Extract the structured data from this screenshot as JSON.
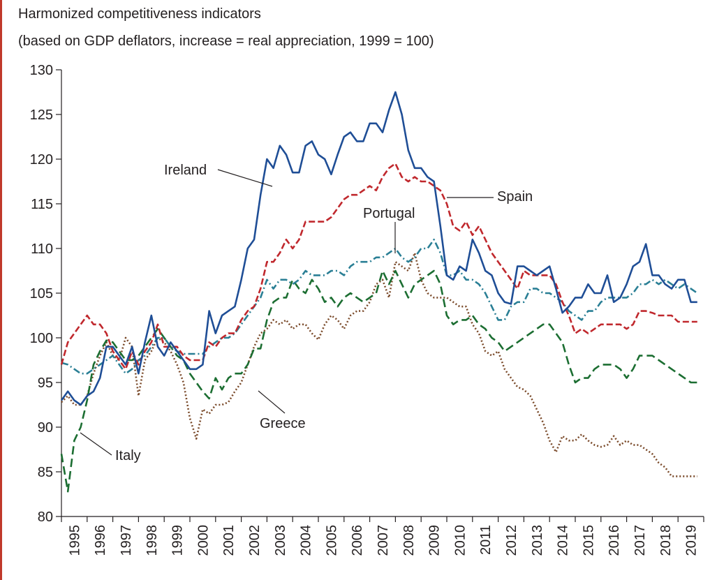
{
  "header": {
    "title": "Harmonized competitiveness indicators",
    "subtitle": "(based on GDP deflators, increase = real appreciation, 1999 = 100)"
  },
  "chart_data": {
    "type": "line",
    "title": "Harmonized competitiveness indicators",
    "subtitle": "(based on GDP deflators, increase = real appreciation, 1999 = 100)",
    "xlabel": "",
    "ylabel": "",
    "ylim": [
      80,
      130
    ],
    "yticks": [
      80,
      85,
      90,
      95,
      100,
      105,
      110,
      115,
      120,
      125,
      130
    ],
    "xlim": [
      1995.0,
      2020.0
    ],
    "xticks": [
      "1995",
      "1996",
      "1997",
      "1998",
      "1999",
      "2000",
      "2001",
      "2002",
      "2003",
      "2004",
      "2005",
      "2006",
      "2007",
      "2008",
      "2009",
      "2010",
      "2011",
      "2012",
      "2013",
      "2014",
      "2015",
      "2016",
      "2017",
      "2018",
      "2019"
    ],
    "grid": false,
    "legend": "inline labels",
    "series": [
      {
        "name": "Ireland",
        "color": "#1f4e96",
        "style": "solid",
        "x": [
          1995.0,
          1995.25,
          1995.5,
          1995.75,
          1996.0,
          1996.25,
          1996.5,
          1996.75,
          1997.0,
          1997.25,
          1997.5,
          1997.75,
          1998.0,
          1998.25,
          1998.5,
          1998.75,
          1999.0,
          1999.25,
          1999.5,
          1999.75,
          2000.0,
          2000.25,
          2000.5,
          2000.75,
          2001.0,
          2001.25,
          2001.5,
          2001.75,
          2002.0,
          2002.25,
          2002.5,
          2002.75,
          2003.0,
          2003.25,
          2003.5,
          2003.75,
          2004.0,
          2004.25,
          2004.5,
          2004.75,
          2005.0,
          2005.25,
          2005.5,
          2005.75,
          2006.0,
          2006.25,
          2006.5,
          2006.75,
          2007.0,
          2007.25,
          2007.5,
          2007.75,
          2008.0,
          2008.25,
          2008.5,
          2008.75,
          2009.0,
          2009.25,
          2009.5,
          2009.75,
          2010.0,
          2010.25,
          2010.5,
          2010.75,
          2011.0,
          2011.25,
          2011.5,
          2011.75,
          2012.0,
          2012.25,
          2012.5,
          2012.75,
          2013.0,
          2013.25,
          2013.5,
          2013.75,
          2014.0,
          2014.25,
          2014.5,
          2014.75,
          2015.0,
          2015.25,
          2015.5,
          2015.75,
          2016.0,
          2016.25,
          2016.5,
          2016.75,
          2017.0,
          2017.25,
          2017.5,
          2017.75,
          2018.0,
          2018.25,
          2018.5,
          2018.75,
          2019.0,
          2019.25,
          2019.5,
          2019.75
        ],
        "y": [
          93.0,
          94.0,
          93.0,
          92.5,
          93.5,
          94.0,
          95.5,
          99.0,
          99.0,
          98.0,
          97.0,
          99.0,
          96.0,
          99.5,
          102.5,
          99.0,
          98.0,
          99.5,
          98.5,
          97.5,
          96.5,
          96.5,
          97.0,
          103.0,
          100.5,
          102.5,
          103.0,
          103.5,
          106.5,
          110.0,
          111.0,
          116.0,
          120.0,
          119.0,
          121.5,
          120.5,
          118.5,
          118.5,
          121.5,
          122.0,
          120.5,
          120.0,
          118.3,
          120.5,
          122.5,
          123.0,
          122.0,
          122.0,
          124.0,
          124.0,
          123.0,
          125.5,
          127.5,
          125.0,
          121.0,
          119.0,
          119.0,
          118.0,
          117.5,
          112.5,
          107.0,
          106.5,
          108.0,
          107.5,
          111.0,
          109.5,
          107.5,
          107.0,
          105.0,
          104.0,
          103.8,
          108.0,
          108.0,
          107.5,
          107.0,
          107.5,
          108.0,
          105.5,
          102.8,
          103.5,
          104.5,
          104.5,
          106.0,
          105.0,
          105.0,
          107.0,
          104.0,
          104.5,
          106.0,
          108.0,
          108.5,
          110.5,
          107.0,
          107.0,
          106.0,
          105.5,
          106.5,
          106.5,
          104.0,
          104.0
        ]
      },
      {
        "name": "Spain",
        "color": "#c0282d",
        "style": "dashed",
        "x": [
          1995.0,
          1995.25,
          1995.5,
          1995.75,
          1996.0,
          1996.25,
          1996.5,
          1996.75,
          1997.0,
          1997.25,
          1997.5,
          1997.75,
          1998.0,
          1998.25,
          1998.5,
          1998.75,
          1999.0,
          1999.25,
          1999.5,
          1999.75,
          2000.0,
          2000.25,
          2000.5,
          2000.75,
          2001.0,
          2001.25,
          2001.5,
          2001.75,
          2002.0,
          2002.25,
          2002.5,
          2002.75,
          2003.0,
          2003.25,
          2003.5,
          2003.75,
          2004.0,
          2004.25,
          2004.5,
          2004.75,
          2005.0,
          2005.25,
          2005.5,
          2005.75,
          2006.0,
          2006.25,
          2006.5,
          2006.75,
          2007.0,
          2007.25,
          2007.5,
          2007.75,
          2008.0,
          2008.25,
          2008.5,
          2008.75,
          2009.0,
          2009.25,
          2009.5,
          2009.75,
          2010.0,
          2010.25,
          2010.5,
          2010.75,
          2011.0,
          2011.25,
          2011.5,
          2011.75,
          2012.0,
          2012.25,
          2012.5,
          2012.75,
          2013.0,
          2013.25,
          2013.5,
          2013.75,
          2014.0,
          2014.25,
          2014.5,
          2014.75,
          2015.0,
          2015.25,
          2015.5,
          2015.75,
          2016.0,
          2016.25,
          2016.5,
          2016.75,
          2017.0,
          2017.25,
          2017.5,
          2017.75,
          2018.0,
          2018.25,
          2018.5,
          2018.75,
          2019.0,
          2019.25,
          2019.5,
          2019.75
        ],
        "y": [
          97.0,
          99.5,
          100.5,
          101.5,
          102.5,
          101.5,
          101.5,
          100.5,
          98.5,
          97.5,
          96.5,
          98.5,
          97.0,
          98.5,
          99.5,
          101.5,
          99.0,
          99.0,
          99.0,
          98.0,
          97.5,
          97.5,
          97.5,
          99.5,
          99.0,
          100.0,
          100.5,
          100.5,
          102.0,
          103.0,
          103.5,
          105.5,
          108.5,
          108.5,
          109.5,
          111.0,
          110.0,
          111.0,
          113.0,
          113.0,
          113.0,
          113.0,
          113.5,
          114.5,
          115.5,
          116.0,
          116.0,
          116.5,
          117.0,
          116.5,
          118.0,
          119.0,
          119.5,
          118.0,
          117.5,
          118.0,
          117.5,
          117.5,
          117.0,
          116.5,
          115.0,
          112.5,
          112.0,
          113.0,
          111.5,
          112.5,
          111.0,
          109.5,
          108.5,
          107.5,
          106.5,
          105.5,
          107.5,
          107.0,
          107.0,
          107.0,
          107.0,
          106.0,
          104.0,
          102.5,
          100.5,
          101.0,
          100.5,
          101.0,
          101.5,
          101.5,
          101.5,
          101.5,
          101.0,
          101.5,
          103.0,
          103.0,
          102.8,
          102.5,
          102.5,
          102.5,
          101.8,
          101.8,
          101.8,
          101.8
        ]
      },
      {
        "name": "Portugal",
        "color": "#2a7f95",
        "style": "dash-dot",
        "x": [
          1995.0,
          1995.25,
          1995.5,
          1995.75,
          1996.0,
          1996.25,
          1996.5,
          1996.75,
          1997.0,
          1997.25,
          1997.5,
          1997.75,
          1998.0,
          1998.25,
          1998.5,
          1998.75,
          1999.0,
          1999.25,
          1999.5,
          1999.75,
          2000.0,
          2000.25,
          2000.5,
          2000.75,
          2001.0,
          2001.25,
          2001.5,
          2001.75,
          2002.0,
          2002.25,
          2002.5,
          2002.75,
          2003.0,
          2003.25,
          2003.5,
          2003.75,
          2004.0,
          2004.25,
          2004.5,
          2004.75,
          2005.0,
          2005.25,
          2005.5,
          2005.75,
          2006.0,
          2006.25,
          2006.5,
          2006.75,
          2007.0,
          2007.25,
          2007.5,
          2007.75,
          2008.0,
          2008.25,
          2008.5,
          2008.75,
          2009.0,
          2009.25,
          2009.5,
          2009.75,
          2010.0,
          2010.25,
          2010.5,
          2010.75,
          2011.0,
          2011.25,
          2011.5,
          2011.75,
          2012.0,
          2012.25,
          2012.5,
          2012.75,
          2013.0,
          2013.25,
          2013.5,
          2013.75,
          2014.0,
          2014.25,
          2014.5,
          2014.75,
          2015.0,
          2015.25,
          2015.5,
          2015.75,
          2016.0,
          2016.25,
          2016.5,
          2016.75,
          2017.0,
          2017.25,
          2017.5,
          2017.75,
          2018.0,
          2018.25,
          2018.5,
          2018.75,
          2019.0,
          2019.25,
          2019.5,
          2019.75
        ],
        "y": [
          97.2,
          97.0,
          96.5,
          96.0,
          96.0,
          96.5,
          97.0,
          97.5,
          98.0,
          97.0,
          96.0,
          96.5,
          97.5,
          98.0,
          99.0,
          100.0,
          100.0,
          99.0,
          98.5,
          98.2,
          98.2,
          98.2,
          98.2,
          99.0,
          99.5,
          100.0,
          100.0,
          100.5,
          101.5,
          102.5,
          103.5,
          104.5,
          106.5,
          105.5,
          106.5,
          106.5,
          106.0,
          106.5,
          107.5,
          107.0,
          107.0,
          107.0,
          107.5,
          107.5,
          107.0,
          108.0,
          108.5,
          108.5,
          108.5,
          109.0,
          109.0,
          109.5,
          110.0,
          109.0,
          108.5,
          109.0,
          110.0,
          110.0,
          111.0,
          109.5,
          107.0,
          107.0,
          107.5,
          106.5,
          106.5,
          106.0,
          105.0,
          103.5,
          102.0,
          102.0,
          103.5,
          104.0,
          104.0,
          105.5,
          105.5,
          105.0,
          105.0,
          104.5,
          104.0,
          103.0,
          102.5,
          102.0,
          103.0,
          103.0,
          104.0,
          104.5,
          104.5,
          104.5,
          104.5,
          105.0,
          106.0,
          106.0,
          106.5,
          106.0,
          106.5,
          106.0,
          105.5,
          106.0,
          105.5,
          105.0
        ]
      },
      {
        "name": "Italy",
        "color": "#1c6e32",
        "style": "long-dash",
        "x": [
          1995.0,
          1995.25,
          1995.5,
          1995.75,
          1996.0,
          1996.25,
          1996.5,
          1996.75,
          1997.0,
          1997.25,
          1997.5,
          1997.75,
          1998.0,
          1998.25,
          1998.5,
          1998.75,
          1999.0,
          1999.25,
          1999.5,
          1999.75,
          2000.0,
          2000.25,
          2000.5,
          2000.75,
          2001.0,
          2001.25,
          2001.5,
          2001.75,
          2002.0,
          2002.25,
          2002.5,
          2002.75,
          2003.0,
          2003.25,
          2003.5,
          2003.75,
          2004.0,
          2004.25,
          2004.5,
          2004.75,
          2005.0,
          2005.25,
          2005.5,
          2005.75,
          2006.0,
          2006.25,
          2006.5,
          2006.75,
          2007.0,
          2007.25,
          2007.5,
          2007.75,
          2008.0,
          2008.25,
          2008.5,
          2008.75,
          2009.0,
          2009.25,
          2009.5,
          2009.75,
          2010.0,
          2010.25,
          2010.5,
          2010.75,
          2011.0,
          2011.25,
          2011.5,
          2011.75,
          2012.0,
          2012.25,
          2012.5,
          2012.75,
          2013.0,
          2013.25,
          2013.5,
          2013.75,
          2014.0,
          2014.25,
          2014.5,
          2014.75,
          2015.0,
          2015.25,
          2015.5,
          2015.75,
          2016.0,
          2016.25,
          2016.5,
          2016.75,
          2017.0,
          2017.25,
          2017.5,
          2017.75,
          2018.0,
          2018.25,
          2018.5,
          2018.75,
          2019.0,
          2019.25,
          2019.5,
          2019.75
        ],
        "y": [
          87.0,
          82.8,
          88.5,
          90.0,
          93.0,
          97.0,
          98.5,
          99.7,
          99.5,
          98.5,
          97.5,
          97.5,
          98.0,
          99.0,
          100.0,
          101.0,
          100.0,
          99.0,
          98.0,
          97.5,
          96.0,
          95.0,
          94.0,
          93.2,
          95.5,
          94.2,
          95.5,
          96.0,
          96.0,
          97.0,
          98.8,
          98.8,
          102.0,
          104.0,
          104.5,
          104.5,
          106.5,
          105.5,
          105.0,
          106.5,
          105.5,
          104.0,
          104.5,
          103.5,
          104.5,
          105.0,
          104.5,
          104.0,
          104.5,
          105.0,
          107.5,
          106.0,
          107.5,
          106.0,
          104.5,
          106.0,
          106.5,
          107.0,
          107.5,
          106.0,
          102.5,
          101.5,
          102.0,
          102.0,
          102.5,
          101.5,
          101.0,
          100.0,
          99.5,
          98.5,
          99.0,
          99.5,
          100.0,
          100.5,
          101.0,
          101.5,
          101.5,
          100.5,
          99.5,
          97.0,
          95.0,
          95.5,
          95.5,
          96.5,
          97.0,
          97.0,
          97.0,
          96.5,
          95.5,
          96.5,
          98.0,
          98.0,
          98.0,
          97.5,
          97.0,
          96.5,
          96.0,
          95.5,
          95.0,
          95.0
        ]
      },
      {
        "name": "Greece",
        "color": "#7a4a2a",
        "style": "dotted",
        "x": [
          1995.0,
          1995.25,
          1995.5,
          1995.75,
          1996.0,
          1996.25,
          1996.5,
          1996.75,
          1997.0,
          1997.25,
          1997.5,
          1997.75,
          1998.0,
          1998.25,
          1998.5,
          1998.75,
          1999.0,
          1999.25,
          1999.5,
          1999.75,
          2000.0,
          2000.25,
          2000.5,
          2000.75,
          2001.0,
          2001.25,
          2001.5,
          2001.75,
          2002.0,
          2002.25,
          2002.5,
          2002.75,
          2003.0,
          2003.25,
          2003.5,
          2003.75,
          2004.0,
          2004.25,
          2004.5,
          2004.75,
          2005.0,
          2005.25,
          2005.5,
          2005.75,
          2006.0,
          2006.25,
          2006.5,
          2006.75,
          2007.0,
          2007.25,
          2007.5,
          2007.75,
          2008.0,
          2008.25,
          2008.5,
          2008.75,
          2009.0,
          2009.25,
          2009.5,
          2009.75,
          2010.0,
          2010.25,
          2010.5,
          2010.75,
          2011.0,
          2011.25,
          2011.5,
          2011.75,
          2012.0,
          2012.25,
          2012.5,
          2012.75,
          2013.0,
          2013.25,
          2013.5,
          2013.75,
          2014.0,
          2014.25,
          2014.5,
          2014.75,
          2015.0,
          2015.25,
          2015.5,
          2015.75,
          2016.0,
          2016.25,
          2016.5,
          2016.75,
          2017.0,
          2017.25,
          2017.5,
          2017.75,
          2018.0,
          2018.25,
          2018.5,
          2018.75,
          2019.0,
          2019.25,
          2019.5,
          2019.75
        ],
        "y": [
          92.8,
          93.5,
          92.5,
          92.5,
          93.5,
          96.0,
          98.0,
          99.5,
          98.0,
          97.5,
          100.0,
          99.0,
          93.5,
          97.5,
          98.5,
          100.0,
          99.5,
          98.5,
          97.0,
          95.0,
          91.0,
          88.7,
          92.0,
          91.5,
          92.5,
          92.5,
          92.8,
          94.0,
          95.0,
          97.0,
          99.0,
          100.5,
          101.0,
          102.0,
          101.5,
          102.0,
          101.0,
          101.5,
          101.5,
          100.5,
          99.8,
          101.5,
          102.5,
          102.0,
          101.0,
          102.5,
          103.0,
          103.0,
          104.0,
          106.0,
          106.5,
          104.5,
          108.5,
          108.0,
          107.5,
          109.5,
          106.5,
          105.0,
          104.5,
          104.5,
          104.5,
          104.0,
          103.5,
          103.5,
          101.5,
          100.5,
          98.5,
          98.0,
          98.5,
          96.5,
          95.5,
          94.5,
          94.2,
          93.5,
          92.0,
          90.5,
          88.5,
          87.2,
          89.0,
          88.5,
          88.5,
          89.2,
          88.5,
          88.0,
          87.8,
          88.0,
          89.0,
          88.0,
          88.5,
          88.0,
          88.0,
          87.5,
          87.0,
          86.0,
          85.5,
          84.5,
          84.5,
          84.5,
          84.5,
          84.5
        ]
      }
    ],
    "annotations": [
      {
        "text": "Ireland",
        "x": 2003.1,
        "y": 117.2
      },
      {
        "text": "Spain",
        "x": 2009.9,
        "y": 115.5
      },
      {
        "text": "Portugal",
        "x": 2007.4,
        "y": 109.3
      },
      {
        "text": "Italy",
        "x": 1995.6,
        "y": 89.5
      },
      {
        "text": "Greece",
        "x": 2002.2,
        "y": 94.2
      }
    ]
  }
}
